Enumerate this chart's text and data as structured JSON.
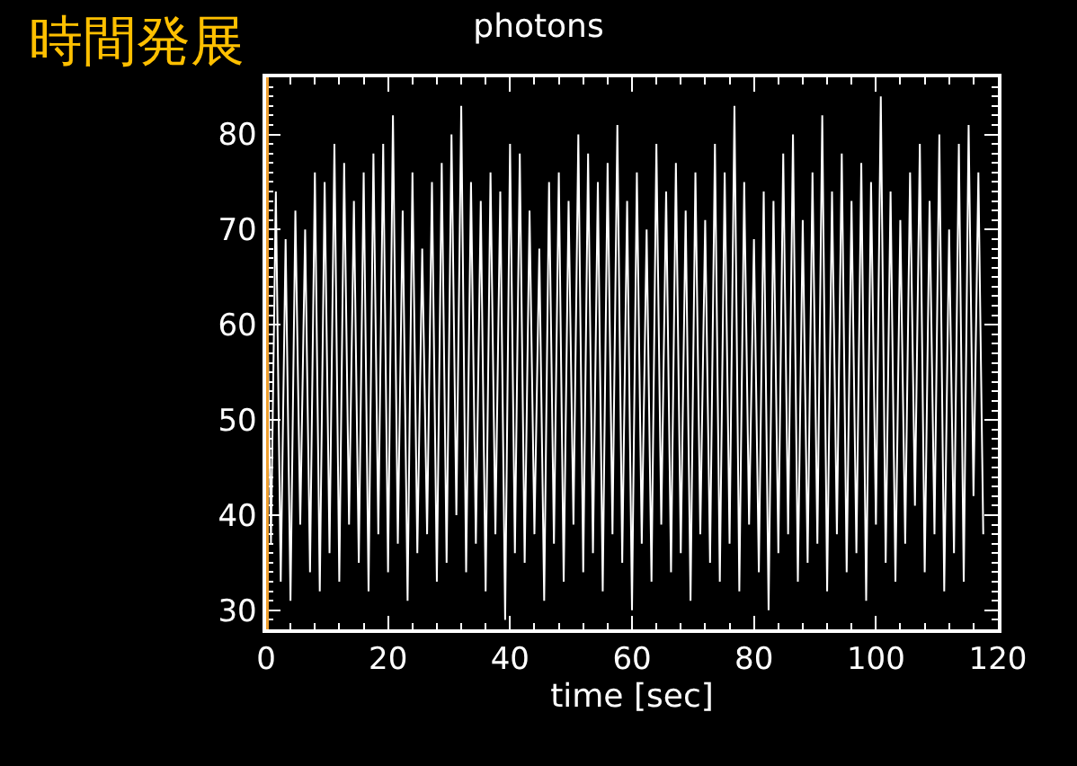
{
  "chart_data": {
    "type": "line",
    "title": "photons",
    "xlabel": "time [sec]",
    "annotations": [
      "時間発展"
    ],
    "x": [
      0,
      0.8,
      1.6,
      2.4,
      3.2,
      4,
      4.8,
      5.6,
      6.4,
      7.2,
      8,
      8.8,
      9.6,
      10.4,
      11.2,
      12,
      12.8,
      13.6,
      14.4,
      15.2,
      16,
      16.8,
      17.6,
      18.4,
      19.2,
      20,
      20.8,
      21.6,
      22.4,
      23.2,
      24,
      24.8,
      25.6,
      26.4,
      27.2,
      28,
      28.8,
      29.6,
      30.4,
      31.2,
      32,
      32.8,
      33.6,
      34.4,
      35.2,
      36,
      36.8,
      37.6,
      38.4,
      39.2,
      40,
      40.8,
      41.6,
      42.4,
      43.2,
      44,
      44.8,
      45.6,
      46.4,
      47.2,
      48,
      48.8,
      49.6,
      50.4,
      51.2,
      52,
      52.8,
      53.6,
      54.4,
      55.2,
      56,
      56.8,
      57.6,
      58.4,
      59.2,
      60,
      60.8,
      61.6,
      62.4,
      63.2,
      64,
      64.8,
      65.6,
      66.4,
      67.2,
      68,
      68.8,
      69.6,
      70.4,
      71.2,
      72,
      72.8,
      73.6,
      74.4,
      75.2,
      76,
      76.8,
      77.6,
      78.4,
      79.2,
      80,
      80.8,
      81.6,
      82.4,
      83.2,
      84,
      84.8,
      85.6,
      86.4,
      87.2,
      88,
      88.8,
      89.6,
      90.4,
      91.2,
      92,
      92.8,
      93.6,
      94.4,
      95.2,
      96,
      96.8,
      97.6,
      98.4,
      99.2,
      100,
      100.8,
      101.6,
      102.4,
      103.2,
      104,
      104.8,
      105.6,
      106.4,
      107.2,
      108,
      108.8,
      109.6,
      110.4,
      111.2,
      112,
      112.8,
      113.6,
      114.4,
      115.2,
      116,
      116.8,
      117.6
    ],
    "series": [
      {
        "color": "#ffffff",
        "values": [
          70,
          37,
          74,
          33,
          69,
          31,
          72,
          39,
          70,
          34,
          76,
          32,
          75,
          36,
          79,
          33,
          77,
          39,
          73,
          35,
          76,
          32,
          78,
          38,
          79,
          34,
          82,
          37,
          72,
          31,
          76,
          36,
          68,
          38,
          75,
          33,
          77,
          35,
          80,
          40,
          83,
          34,
          75,
          37,
          73,
          32,
          76,
          38,
          74,
          29,
          79,
          36,
          78,
          35,
          72,
          38,
          68,
          31,
          75,
          37,
          76,
          33,
          73,
          39,
          80,
          34,
          78,
          36,
          75,
          32,
          77,
          38,
          81,
          35,
          73,
          30,
          76,
          37,
          70,
          33,
          79,
          39,
          74,
          34,
          77,
          36,
          72,
          31,
          76,
          38,
          71,
          35,
          79,
          33,
          76,
          37,
          83,
          32,
          75,
          39,
          69,
          34,
          74,
          30,
          73,
          36,
          78,
          38,
          80,
          33,
          71,
          35,
          76,
          37,
          82,
          32,
          74,
          38,
          78,
          34,
          73,
          36,
          77,
          31,
          75,
          39,
          84,
          35,
          74,
          33,
          71,
          37,
          76,
          41,
          79,
          34,
          73,
          38,
          80,
          32,
          70,
          36,
          79,
          33,
          81,
          42,
          76,
          38
        ]
      }
    ],
    "xlim": [
      0,
      120
    ],
    "xticks": [
      0,
      20,
      40,
      60,
      80,
      100,
      120
    ],
    "ylim": [
      28,
      86
    ],
    "yticks": [
      30,
      40,
      50,
      60,
      70,
      80
    ],
    "ref_lines": [
      {
        "axis": "x",
        "value": 0,
        "color": "#f0a030"
      }
    ],
    "grid": false,
    "legend": false
  }
}
